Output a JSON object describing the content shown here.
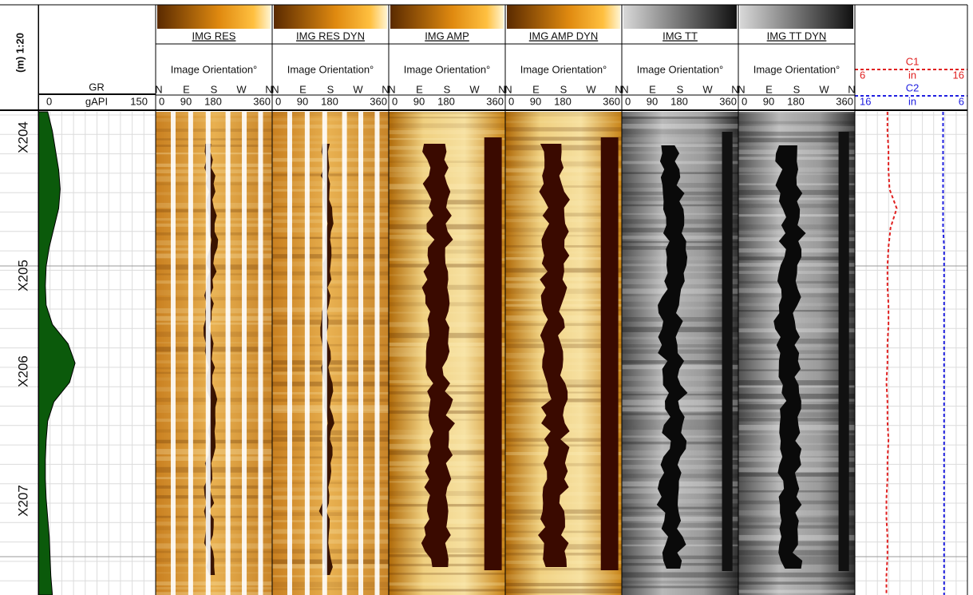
{
  "depth_track": {
    "scale_label": "(m) 1:20",
    "depth_labels": [
      "X204",
      "X205",
      "X206",
      "X207"
    ]
  },
  "gr_track": {
    "name": "GR",
    "unit": "gAPI",
    "min": 0,
    "max": 150,
    "color": "#0b5a0b",
    "values": [
      12,
      18,
      22,
      26,
      28,
      26,
      20,
      14,
      10,
      9,
      10,
      18,
      38,
      47,
      40,
      20,
      12,
      10,
      9,
      9,
      10,
      12,
      14,
      15,
      16,
      18
    ]
  },
  "image_tracks": [
    {
      "title": "IMG RES",
      "orientation_label": "Image Orientation°",
      "directions": [
        "N",
        "E",
        "S",
        "W",
        "N"
      ],
      "ticks": [
        0,
        90,
        180,
        360
      ]
    },
    {
      "title": "IMG RES DYN",
      "orientation_label": "Image Orientation°",
      "directions": [
        "N",
        "E",
        "S",
        "W",
        "N"
      ],
      "ticks": [
        0,
        90,
        180,
        360
      ]
    },
    {
      "title": "IMG AMP",
      "orientation_label": "Image Orientation°",
      "directions": [
        "N",
        "E",
        "S",
        "W",
        "N"
      ],
      "ticks": [
        0,
        90,
        180,
        360
      ]
    },
    {
      "title": "IMG AMP DYN",
      "orientation_label": "Image Orientation°",
      "directions": [
        "N",
        "E",
        "S",
        "W",
        "N"
      ],
      "ticks": [
        0,
        90,
        180,
        360
      ]
    },
    {
      "title": "IMG TT",
      "orientation_label": "Image Orientation°",
      "directions": [
        "N",
        "E",
        "S",
        "W",
        "N"
      ],
      "ticks": [
        0,
        90,
        180,
        360
      ]
    },
    {
      "title": "IMG TT DYN",
      "orientation_label": "Image Orientation°",
      "directions": [
        "N",
        "E",
        "S",
        "W",
        "N"
      ],
      "ticks": [
        0,
        90,
        180,
        360
      ]
    }
  ],
  "caliper_track": {
    "curves": [
      {
        "name": "C1",
        "unit": "in",
        "left": 6,
        "right": 16,
        "color": "#e02020",
        "values": [
          8.7,
          8.7,
          8.8,
          8.8,
          8.9,
          9.6,
          9.0,
          8.8,
          8.7,
          8.7,
          8.8,
          8.8,
          8.7,
          8.7,
          8.6,
          8.7,
          8.7,
          8.8,
          8.7,
          8.7,
          8.6,
          8.6,
          8.7,
          8.7,
          8.6,
          8.6
        ]
      },
      {
        "name": "C2",
        "unit": "in",
        "left": 16,
        "right": 6,
        "color": "#2020e0",
        "values": [
          7.9,
          7.9,
          7.9,
          7.9,
          7.9,
          7.9,
          7.9,
          7.8,
          7.8,
          7.8,
          7.8,
          7.8,
          7.8,
          7.8,
          7.8,
          7.8,
          7.8,
          7.8,
          7.8,
          7.8,
          7.8,
          7.8,
          7.8,
          7.8,
          7.8,
          7.8
        ]
      }
    ]
  }
}
